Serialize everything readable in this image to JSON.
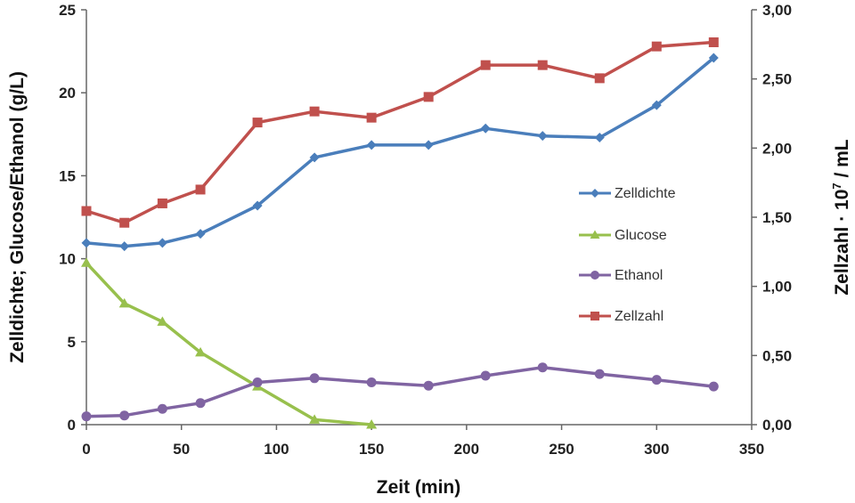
{
  "chart_data": {
    "type": "line",
    "xlabel": "Zeit (min)",
    "ylabel_left": "Zelldichte; Glucose/Ethanol (g/L)",
    "ylabel_right_prefix": "Zellzahl · 10",
    "ylabel_right_exp": "7",
    "ylabel_right_suffix": " / mL",
    "xlim": [
      0,
      350
    ],
    "ylim_left": [
      0,
      25
    ],
    "ylim_right": [
      0,
      3
    ],
    "x_ticks": [
      "0",
      "50",
      "100",
      "150",
      "200",
      "250",
      "300",
      "350"
    ],
    "y_left_ticks": [
      "0",
      "5",
      "10",
      "15",
      "20",
      "25"
    ],
    "y_right_ticks": [
      "0,00",
      "0,50",
      "1,00",
      "1,50",
      "2,00",
      "2,50",
      "3,00"
    ],
    "legend_position": "right-center",
    "grid": false,
    "series": [
      {
        "name": "Zelldichte",
        "axis": "left",
        "color": "#4a7ebb",
        "marker": "diamond",
        "x": [
          0,
          20,
          40,
          60,
          90,
          120,
          150,
          180,
          210,
          240,
          270,
          300,
          330
        ],
        "y": [
          10.95,
          10.75,
          10.95,
          11.5,
          13.2,
          16.1,
          16.85,
          16.85,
          17.85,
          17.4,
          17.3,
          19.25,
          22.1
        ]
      },
      {
        "name": "Glucose",
        "axis": "left",
        "color": "#98c04d",
        "marker": "triangle",
        "x": [
          0,
          20,
          40,
          60,
          90,
          120,
          150
        ],
        "y": [
          9.75,
          7.3,
          6.2,
          4.35,
          2.3,
          0.3,
          0.0
        ]
      },
      {
        "name": "Ethanol",
        "axis": "left",
        "color": "#8064a2",
        "marker": "circle",
        "x": [
          0,
          20,
          40,
          60,
          90,
          120,
          150,
          180,
          210,
          240,
          270,
          300,
          330
        ],
        "y": [
          0.5,
          0.55,
          0.95,
          1.3,
          2.55,
          2.8,
          2.55,
          2.35,
          2.95,
          3.45,
          3.05,
          2.7,
          2.3
        ]
      },
      {
        "name": "Zellzahl",
        "axis": "right",
        "color": "#c0504d",
        "marker": "square",
        "x": [
          0,
          20,
          40,
          60,
          90,
          120,
          150,
          180,
          210,
          240,
          270,
          300,
          330
        ],
        "y": [
          1.545,
          1.46,
          1.6,
          1.7,
          2.185,
          2.265,
          2.22,
          2.37,
          2.6,
          2.6,
          2.505,
          2.735,
          2.765
        ]
      }
    ]
  }
}
